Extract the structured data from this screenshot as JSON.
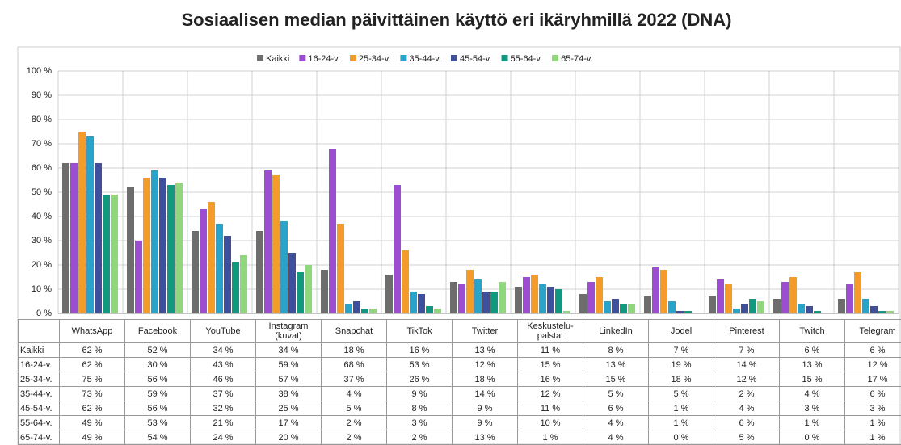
{
  "chart_data": {
    "type": "bar",
    "title": "Sosiaalisen median päivittäinen käyttö eri ikäryhmillä 2022 (DNA)",
    "categories": [
      "WhatsApp",
      "Facebook",
      "YouTube",
      "Instagram (kuvat)",
      "Snapchat",
      "TikTok",
      "Twitter",
      "Keskustelu-palstat",
      "LinkedIn",
      "Jodel",
      "Pinterest",
      "Twitch",
      "Telegram"
    ],
    "series": [
      {
        "name": "Kaikki",
        "color": "#6d6d6d",
        "values": [
          62,
          52,
          34,
          34,
          18,
          16,
          13,
          11,
          8,
          7,
          7,
          6,
          6
        ],
        "value_labels": [
          "62 %",
          "52 %",
          "34 %",
          "34 %",
          "18 %",
          "16 %",
          "13 %",
          "11 %",
          "8 %",
          "7 %",
          "7 %",
          "6 %",
          "6 %"
        ]
      },
      {
        "name": "16-24-v.",
        "color": "#9b4fd0",
        "values": [
          62,
          30,
          43,
          59,
          68,
          53,
          12,
          15,
          13,
          19,
          14,
          13,
          12
        ],
        "value_labels": [
          "62 %",
          "30 %",
          "43 %",
          "59 %",
          "68 %",
          "53 %",
          "12 %",
          "15 %",
          "13 %",
          "19 %",
          "14 %",
          "13 %",
          "12 %"
        ]
      },
      {
        "name": "25-34-v.",
        "color": "#f39c2a",
        "values": [
          75,
          56,
          46,
          57,
          37,
          26,
          18,
          16,
          15,
          18,
          12,
          15,
          17
        ],
        "value_labels": [
          "75 %",
          "56 %",
          "46 %",
          "57 %",
          "37 %",
          "26 %",
          "18 %",
          "16 %",
          "15 %",
          "18 %",
          "12 %",
          "15 %",
          "17 %"
        ]
      },
      {
        "name": "35-44-v.",
        "color": "#2aa3c9",
        "values": [
          73,
          59,
          37,
          38,
          4,
          9,
          14,
          12,
          5,
          5,
          2,
          4,
          6
        ],
        "value_labels": [
          "73 %",
          "59 %",
          "37 %",
          "38 %",
          "4 %",
          "9 %",
          "14 %",
          "12 %",
          "5 %",
          "5 %",
          "2 %",
          "4 %",
          "6 %"
        ]
      },
      {
        "name": "45-54-v.",
        "color": "#3f4f9a",
        "values": [
          62,
          56,
          32,
          25,
          5,
          8,
          9,
          11,
          6,
          1,
          4,
          3,
          3
        ],
        "value_labels": [
          "62 %",
          "56 %",
          "32 %",
          "25 %",
          "5 %",
          "8 %",
          "9 %",
          "11 %",
          "6 %",
          "1 %",
          "4 %",
          "3 %",
          "3 %"
        ]
      },
      {
        "name": "55-64-v.",
        "color": "#12987f",
        "values": [
          49,
          53,
          21,
          17,
          2,
          3,
          9,
          10,
          4,
          1,
          6,
          1,
          1
        ],
        "value_labels": [
          "49 %",
          "53 %",
          "21 %",
          "17 %",
          "2 %",
          "3 %",
          "9 %",
          "10 %",
          "4 %",
          "1 %",
          "6 %",
          "1 %",
          "1 %"
        ]
      },
      {
        "name": "65-74-v.",
        "color": "#8fd67e",
        "values": [
          49,
          54,
          24,
          20,
          2,
          2,
          13,
          1,
          4,
          0,
          5,
          0,
          1
        ],
        "value_labels": [
          "49 %",
          "54 %",
          "24 %",
          "20 %",
          "2 %",
          "2 %",
          "13 %",
          "1 %",
          "4 %",
          "0 %",
          "5 %",
          "0 %",
          "1 %"
        ]
      }
    ],
    "ylim": [
      0,
      100
    ],
    "yticks": [
      {
        "value": 0,
        "label": "0 %"
      },
      {
        "value": 10,
        "label": "10 %"
      },
      {
        "value": 20,
        "label": "20 %"
      },
      {
        "value": 30,
        "label": "30 %"
      },
      {
        "value": 40,
        "label": "40 %"
      },
      {
        "value": 50,
        "label": "50 %"
      },
      {
        "value": 60,
        "label": "60 %"
      },
      {
        "value": 70,
        "label": "70 %"
      },
      {
        "value": 80,
        "label": "80 %"
      },
      {
        "value": 90,
        "label": "90 %"
      },
      {
        "value": 100,
        "label": "100 %"
      }
    ],
    "grid": true,
    "legend": "top"
  }
}
